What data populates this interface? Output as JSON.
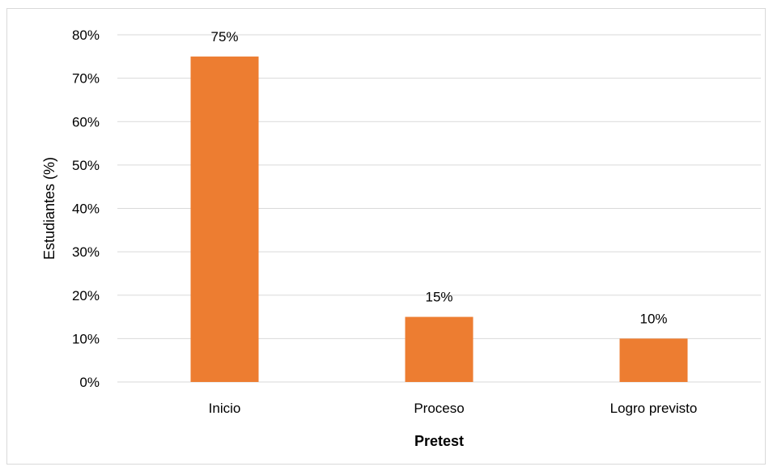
{
  "chart_data": {
    "type": "bar",
    "categories": [
      "Inicio",
      "Proceso",
      "Logro previsto"
    ],
    "values": [
      75,
      15,
      10
    ],
    "data_labels": [
      "75%",
      "15%",
      "10%"
    ],
    "y_ticks": [
      "0%",
      "10%",
      "20%",
      "30%",
      "40%",
      "50%",
      "60%",
      "70%",
      "80%"
    ],
    "ylim": [
      0,
      80
    ],
    "xlabel": "Pretest",
    "ylabel": "Estudiantes (%)",
    "grid": true,
    "bar_color": "#ED7D31",
    "grid_color": "#D9D9D9"
  }
}
